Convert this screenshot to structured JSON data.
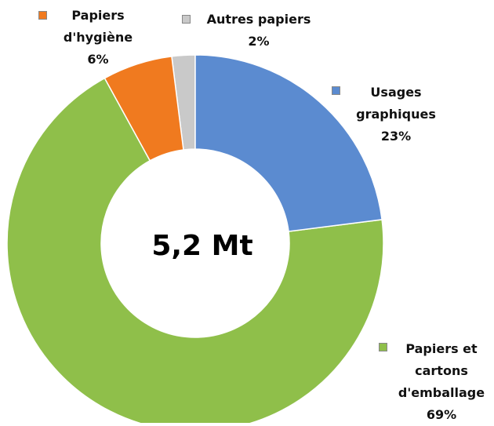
{
  "chart_data": {
    "type": "donut",
    "center_label": "5,2 Mt",
    "categories": [
      "Usages graphiques",
      "Papiers et cartons d'emballage",
      "Papiers d'hygiène",
      "Autres papiers"
    ],
    "values": [
      23,
      69,
      6,
      2
    ],
    "value_labels": [
      "23%",
      "69%",
      "6%",
      "2%"
    ],
    "colors": [
      "#5b8bd0",
      "#8fbf4a",
      "#f07a1f",
      "#c9c9c9"
    ]
  }
}
